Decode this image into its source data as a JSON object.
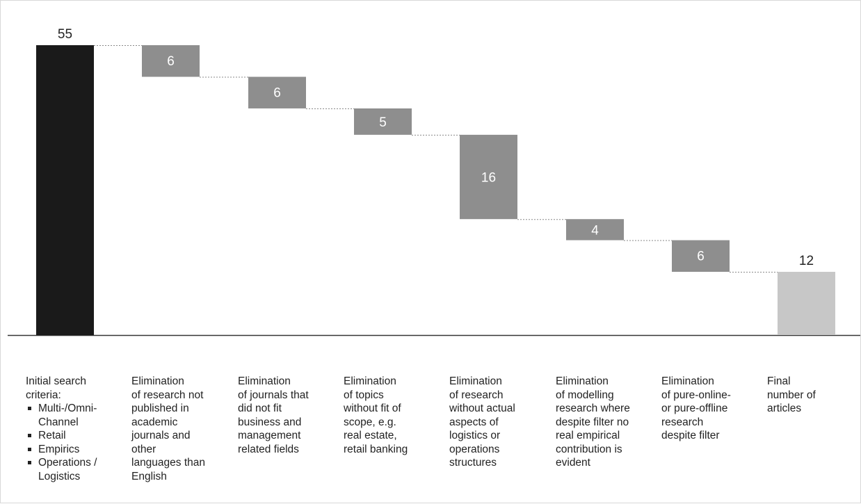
{
  "chart_data": {
    "type": "waterfall",
    "colors": {
      "start": "#1a1a1a",
      "step": "#8e8e8e",
      "end": "#c7c7c7",
      "label_on_step": "#ffffff",
      "label_outside": "#222222"
    },
    "ylim": [
      0,
      57
    ],
    "steps": [
      {
        "kind": "total",
        "value": 55,
        "label": "55",
        "lines": [
          "Initial search",
          "criteria:"
        ],
        "bullets": [
          "Multi-/Omni-\nChannel",
          "Retail",
          "Empirics",
          "Operations /\nLogistics"
        ]
      },
      {
        "kind": "decrease",
        "value": 6,
        "label": "6",
        "lines": [
          "Elimination",
          "of research not",
          "published in",
          "academic",
          "journals and",
          "other",
          "languages than",
          "English"
        ]
      },
      {
        "kind": "decrease",
        "value": 6,
        "label": "6",
        "lines": [
          "Elimination",
          "of journals that",
          "did not fit",
          "business and",
          "management",
          "related fields"
        ]
      },
      {
        "kind": "decrease",
        "value": 5,
        "label": "5",
        "lines": [
          "Elimination",
          "of topics",
          "without fit of",
          "scope, e.g.",
          "real estate,",
          "retail banking"
        ]
      },
      {
        "kind": "decrease",
        "value": 16,
        "label": "16",
        "lines": [
          "Elimination",
          "of research",
          "without actual",
          "aspects of",
          "logistics or",
          "operations",
          "structures"
        ]
      },
      {
        "kind": "decrease",
        "value": 4,
        "label": "4",
        "lines": [
          "Elimination",
          "of modelling",
          "research where",
          "despite filter no",
          "real empirical",
          "contribution is",
          "evident"
        ]
      },
      {
        "kind": "decrease",
        "value": 6,
        "label": "6",
        "lines": [
          "Elimination",
          "of  pure-online-",
          "or pure-offline",
          "research",
          "despite filter"
        ]
      },
      {
        "kind": "total",
        "value": 12,
        "label": "12",
        "lines": [
          "Final",
          "number of",
          "articles"
        ]
      }
    ]
  }
}
